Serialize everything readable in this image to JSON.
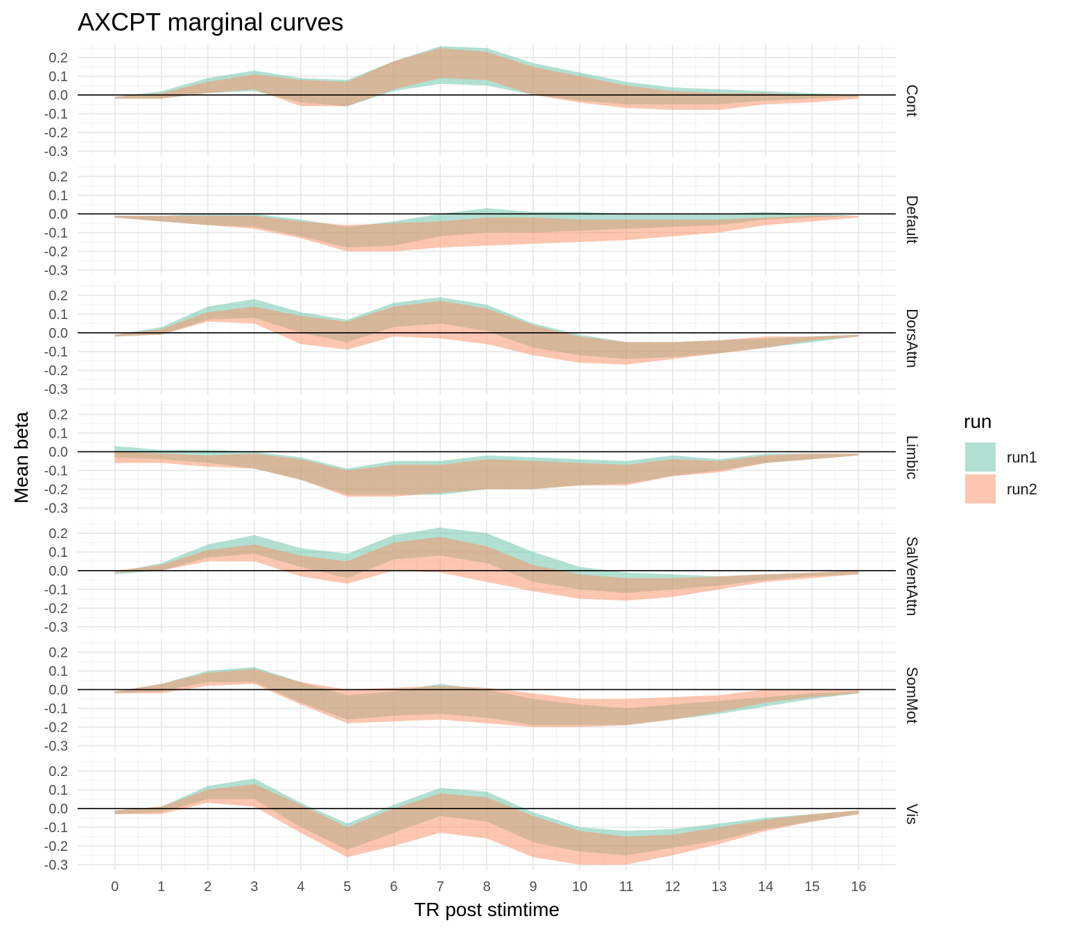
{
  "chart_data": {
    "type": "area",
    "title": "AXCPT marginal curves",
    "xlabel": "TR post stimtime",
    "ylabel": "Mean beta",
    "x": [
      0,
      1,
      2,
      3,
      4,
      5,
      6,
      7,
      8,
      9,
      10,
      11,
      12,
      13,
      14,
      15,
      16
    ],
    "xlim": [
      -0.8,
      16.8
    ],
    "ylim": [
      -0.33,
      0.27
    ],
    "y_ticks": [
      "0.2",
      "0.1",
      "0.0",
      "-0.1",
      "-0.2",
      "-0.3"
    ],
    "y_tick_values": [
      0.2,
      0.1,
      0.0,
      -0.1,
      -0.2,
      -0.3
    ],
    "x_ticks": [
      "0",
      "1",
      "2",
      "3",
      "4",
      "5",
      "6",
      "7",
      "8",
      "9",
      "10",
      "11",
      "12",
      "13",
      "14",
      "15",
      "16"
    ],
    "hline": 0,
    "grid": true,
    "legend": {
      "title": "run",
      "placement": "right",
      "entries": [
        "run1",
        "run2"
      ]
    },
    "colors": {
      "run1": "#66c2a5",
      "run2": "#fc8d62",
      "fill_opacity": 0.5
    },
    "panels": [
      {
        "label": "Cont",
        "series": [
          {
            "name": "run1",
            "upper": [
              -0.01,
              0.02,
              0.09,
              0.13,
              0.09,
              0.08,
              0.18,
              0.26,
              0.25,
              0.17,
              0.12,
              0.07,
              0.04,
              0.03,
              0.02,
              0.01,
              0.0
            ],
            "lower": [
              -0.02,
              -0.02,
              0.01,
              0.02,
              -0.04,
              -0.06,
              0.02,
              0.06,
              0.05,
              0.0,
              -0.03,
              -0.05,
              -0.05,
              -0.05,
              -0.03,
              -0.02,
              -0.01
            ]
          },
          {
            "name": "run2",
            "upper": [
              -0.01,
              0.01,
              0.07,
              0.11,
              0.08,
              0.07,
              0.18,
              0.25,
              0.23,
              0.15,
              0.1,
              0.05,
              0.02,
              0.01,
              0.01,
              0.0,
              0.0
            ],
            "lower": [
              -0.02,
              -0.02,
              0.01,
              0.03,
              -0.06,
              -0.06,
              0.03,
              0.09,
              0.08,
              0.0,
              -0.04,
              -0.07,
              -0.08,
              -0.08,
              -0.05,
              -0.04,
              -0.02
            ]
          }
        ]
      },
      {
        "label": "Default",
        "series": [
          {
            "name": "run1",
            "upper": [
              -0.01,
              -0.01,
              0.0,
              0.0,
              -0.03,
              -0.07,
              -0.04,
              0.0,
              0.03,
              0.01,
              0.01,
              0.0,
              0.0,
              0.0,
              0.01,
              0.0,
              -0.01
            ],
            "lower": [
              -0.02,
              -0.04,
              -0.06,
              -0.07,
              -0.12,
              -0.18,
              -0.17,
              -0.12,
              -0.1,
              -0.1,
              -0.09,
              -0.08,
              -0.07,
              -0.06,
              -0.03,
              -0.02,
              -0.01
            ]
          },
          {
            "name": "run2",
            "upper": [
              -0.01,
              -0.01,
              -0.01,
              -0.01,
              -0.04,
              -0.06,
              -0.05,
              -0.04,
              -0.02,
              -0.02,
              -0.03,
              -0.03,
              -0.03,
              -0.03,
              -0.02,
              -0.01,
              -0.01
            ],
            "lower": [
              -0.02,
              -0.04,
              -0.06,
              -0.08,
              -0.13,
              -0.2,
              -0.2,
              -0.18,
              -0.17,
              -0.16,
              -0.15,
              -0.14,
              -0.12,
              -0.1,
              -0.06,
              -0.04,
              -0.02
            ]
          }
        ]
      },
      {
        "label": "DorsAttn",
        "series": [
          {
            "name": "run1",
            "upper": [
              -0.01,
              0.03,
              0.14,
              0.18,
              0.11,
              0.07,
              0.16,
              0.19,
              0.15,
              0.05,
              -0.01,
              -0.05,
              -0.05,
              -0.04,
              -0.03,
              -0.02,
              -0.01
            ],
            "lower": [
              -0.02,
              -0.01,
              0.07,
              0.08,
              0.0,
              -0.05,
              0.03,
              0.05,
              0.01,
              -0.08,
              -0.12,
              -0.14,
              -0.13,
              -0.11,
              -0.08,
              -0.05,
              -0.02
            ]
          },
          {
            "name": "run2",
            "upper": [
              -0.01,
              0.02,
              0.11,
              0.14,
              0.09,
              0.06,
              0.14,
              0.17,
              0.13,
              0.04,
              -0.02,
              -0.05,
              -0.05,
              -0.04,
              -0.02,
              -0.02,
              -0.01
            ],
            "lower": [
              -0.02,
              -0.01,
              0.06,
              0.05,
              -0.06,
              -0.09,
              -0.02,
              -0.03,
              -0.06,
              -0.12,
              -0.16,
              -0.17,
              -0.14,
              -0.11,
              -0.08,
              -0.04,
              -0.02
            ]
          }
        ]
      },
      {
        "label": "Limbic",
        "series": [
          {
            "name": "run1",
            "upper": [
              0.03,
              0.01,
              0.01,
              0.0,
              -0.03,
              -0.09,
              -0.05,
              -0.05,
              -0.02,
              -0.03,
              -0.04,
              -0.05,
              -0.02,
              -0.04,
              -0.01,
              -0.01,
              -0.01
            ],
            "lower": [
              -0.03,
              -0.04,
              -0.06,
              -0.09,
              -0.15,
              -0.23,
              -0.23,
              -0.23,
              -0.2,
              -0.2,
              -0.18,
              -0.17,
              -0.13,
              -0.1,
              -0.06,
              -0.04,
              -0.02
            ]
          },
          {
            "name": "run2",
            "upper": [
              0.0,
              -0.01,
              -0.02,
              -0.01,
              -0.04,
              -0.1,
              -0.07,
              -0.07,
              -0.04,
              -0.05,
              -0.06,
              -0.07,
              -0.04,
              -0.05,
              -0.02,
              -0.01,
              -0.01
            ],
            "lower": [
              -0.06,
              -0.06,
              -0.08,
              -0.09,
              -0.15,
              -0.24,
              -0.24,
              -0.22,
              -0.2,
              -0.2,
              -0.18,
              -0.18,
              -0.13,
              -0.11,
              -0.06,
              -0.04,
              -0.02
            ]
          }
        ]
      },
      {
        "label": "SalVentAttn",
        "series": [
          {
            "name": "run1",
            "upper": [
              -0.01,
              0.04,
              0.14,
              0.19,
              0.12,
              0.09,
              0.19,
              0.23,
              0.2,
              0.1,
              0.02,
              -0.01,
              -0.02,
              -0.03,
              -0.02,
              -0.01,
              0.0
            ],
            "lower": [
              -0.02,
              0.0,
              0.07,
              0.09,
              0.02,
              -0.04,
              0.06,
              0.08,
              0.04,
              -0.06,
              -0.1,
              -0.12,
              -0.1,
              -0.08,
              -0.05,
              -0.03,
              -0.02
            ]
          },
          {
            "name": "run2",
            "upper": [
              0.0,
              0.03,
              0.11,
              0.14,
              0.08,
              0.05,
              0.15,
              0.18,
              0.13,
              0.03,
              -0.02,
              -0.04,
              -0.04,
              -0.03,
              -0.02,
              -0.01,
              0.0
            ],
            "lower": [
              -0.01,
              0.0,
              0.05,
              0.05,
              -0.03,
              -0.07,
              0.0,
              -0.01,
              -0.06,
              -0.11,
              -0.15,
              -0.16,
              -0.14,
              -0.1,
              -0.06,
              -0.04,
              -0.02
            ]
          }
        ]
      },
      {
        "label": "SomMot",
        "series": [
          {
            "name": "run1",
            "upper": [
              -0.01,
              0.03,
              0.1,
              0.12,
              0.04,
              -0.03,
              -0.01,
              0.03,
              0.0,
              -0.05,
              -0.08,
              -0.1,
              -0.08,
              -0.06,
              -0.04,
              -0.02,
              -0.01
            ],
            "lower": [
              -0.02,
              -0.01,
              0.04,
              0.04,
              -0.07,
              -0.16,
              -0.14,
              -0.13,
              -0.15,
              -0.19,
              -0.19,
              -0.19,
              -0.16,
              -0.13,
              -0.09,
              -0.05,
              -0.02
            ]
          },
          {
            "name": "run2",
            "upper": [
              -0.01,
              0.03,
              0.09,
              0.11,
              0.04,
              0.0,
              0.01,
              0.02,
              0.01,
              -0.02,
              -0.05,
              -0.05,
              -0.04,
              -0.03,
              0.0,
              0.0,
              0.0
            ],
            "lower": [
              -0.02,
              -0.02,
              0.02,
              0.03,
              -0.08,
              -0.18,
              -0.17,
              -0.16,
              -0.18,
              -0.2,
              -0.2,
              -0.19,
              -0.16,
              -0.12,
              -0.07,
              -0.04,
              -0.02
            ]
          }
        ]
      },
      {
        "label": "Vis",
        "series": [
          {
            "name": "run1",
            "upper": [
              -0.01,
              0.01,
              0.12,
              0.16,
              0.03,
              -0.08,
              0.02,
              0.11,
              0.09,
              -0.02,
              -0.1,
              -0.12,
              -0.11,
              -0.08,
              -0.05,
              -0.03,
              -0.01
            ],
            "lower": [
              -0.03,
              -0.02,
              0.05,
              0.05,
              -0.1,
              -0.22,
              -0.13,
              -0.04,
              -0.07,
              -0.18,
              -0.23,
              -0.25,
              -0.21,
              -0.17,
              -0.11,
              -0.07,
              -0.03
            ]
          },
          {
            "name": "run2",
            "upper": [
              -0.01,
              0.01,
              0.1,
              0.13,
              0.02,
              -0.1,
              0.0,
              0.08,
              0.06,
              -0.04,
              -0.12,
              -0.15,
              -0.14,
              -0.1,
              -0.06,
              -0.03,
              -0.01
            ],
            "lower": [
              -0.03,
              -0.03,
              0.03,
              0.01,
              -0.13,
              -0.26,
              -0.2,
              -0.13,
              -0.16,
              -0.26,
              -0.3,
              -0.3,
              -0.25,
              -0.19,
              -0.12,
              -0.07,
              -0.03
            ]
          }
        ]
      }
    ]
  }
}
